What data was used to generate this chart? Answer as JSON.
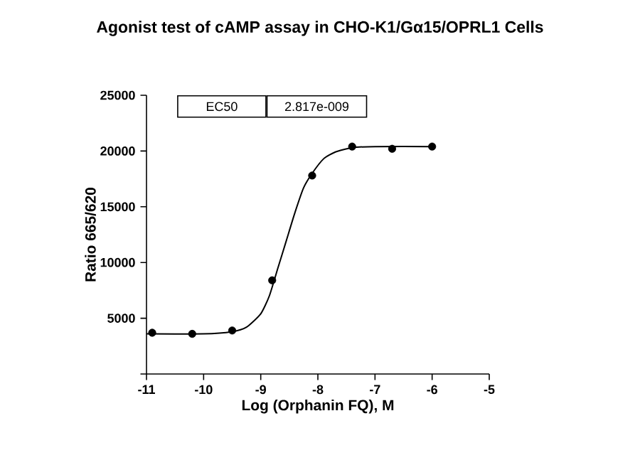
{
  "chart_data": {
    "type": "scatter",
    "title": "Agonist test of cAMP assay in CHO-K1/Gα15/OPRL1 Cells",
    "xlabel": "Log (Orphanin FQ), M",
    "ylabel": "Ratio 665/620",
    "annotations": [
      "EC50",
      "2.817e-009"
    ],
    "xlim": [
      -11,
      -5
    ],
    "xticks": [
      -11,
      -10,
      -9,
      -8,
      -7,
      -6,
      -5
    ],
    "ylim": [
      0,
      25000
    ],
    "yticks": [
      {
        "value": 0,
        "label": null
      },
      5000,
      10000,
      15000,
      20000,
      25000
    ],
    "grid": false,
    "series": [
      {
        "color": "#000000",
        "marker": "circle",
        "x": [
          -10.9,
          -10.2,
          -9.5,
          -8.8,
          -8.1,
          -7.4,
          -6.7,
          -6.0
        ],
        "values": [
          3700,
          3600,
          3900,
          8400,
          17800,
          20400,
          20200,
          20400
        ]
      },
      {
        "type": "line",
        "color": "#000000",
        "marker": "none",
        "x": [
          -11,
          -10,
          -9.5,
          -9.25,
          -9,
          -8.85,
          -8.7,
          -8.55,
          -8.4,
          -8.25,
          -8.1,
          -7.9,
          -7.7,
          -7.4,
          -7,
          -6
        ],
        "values": [
          3600,
          3600,
          3800,
          4200,
          5400,
          7000,
          9500,
          12000,
          14500,
          16700,
          18000,
          19300,
          19900,
          20300,
          20400,
          20400
        ]
      }
    ]
  }
}
